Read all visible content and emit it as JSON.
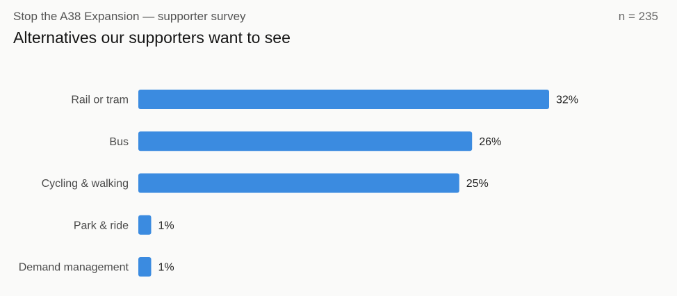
{
  "header": {
    "subtitle": "Stop the A38 Expansion — supporter survey",
    "title": "Alternatives our supporters want to see",
    "sample_size": "n = 235"
  },
  "colors": {
    "bar": "#3b8be0",
    "background": "#fafaf9"
  },
  "chart_data": {
    "type": "bar",
    "orientation": "horizontal",
    "title": "Alternatives our supporters want to see",
    "categories": [
      "Rail or tram",
      "Bus",
      "Cycling & walking",
      "Park & ride",
      "Demand management"
    ],
    "values": [
      32,
      26,
      25,
      1,
      1
    ],
    "value_labels": [
      "32%",
      "26%",
      "25%",
      "1%",
      "1%"
    ],
    "unit": "%",
    "xlim": [
      0,
      32
    ],
    "grid": false,
    "legend": "none"
  }
}
